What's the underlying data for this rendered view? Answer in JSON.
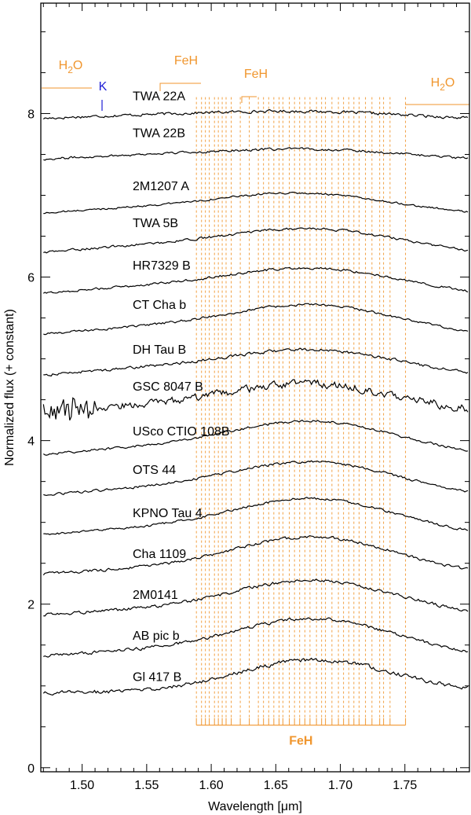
{
  "chart_data": {
    "type": "line",
    "xlabel": "Wavelength [μm]",
    "ylabel": "Normalized flux (+ constant)",
    "xlim": [
      1.468,
      1.8
    ],
    "ylim": [
      -0.05,
      9.35
    ],
    "x_ticks": [
      1.5,
      1.55,
      1.6,
      1.65,
      1.7,
      1.75
    ],
    "x_tick_labels": [
      "1.50",
      "1.55",
      "1.60",
      "1.65",
      "1.70",
      "1.75"
    ],
    "y_ticks": [
      0,
      2,
      4,
      6,
      8
    ],
    "y_tick_labels": [
      "0",
      "2",
      "4",
      "6",
      "8"
    ],
    "grid": false,
    "colors": {
      "spectrum": "#000000",
      "feh": "#f0962e",
      "potassium": "#1f1fd6",
      "axis": "#000000"
    },
    "series": [
      {
        "name": "TWA 22A",
        "offset": 8.0,
        "peak": 1.67,
        "amp": 0.03,
        "noise": 0.018,
        "slope": 0.06,
        "label_y": 8.22
      },
      {
        "name": "TWA 22B",
        "offset": 7.52,
        "peak": 1.68,
        "amp": 0.05,
        "noise": 0.015,
        "slope": 0.08,
        "label_y": 7.77
      },
      {
        "name": "2M1207 A",
        "offset": 6.88,
        "peak": 1.67,
        "amp": 0.15,
        "noise": 0.012,
        "slope": 0.1,
        "label_y": 7.12
      },
      {
        "name": "TWA 5B",
        "offset": 6.42,
        "peak": 1.68,
        "amp": 0.18,
        "noise": 0.015,
        "slope": 0.12,
        "label_y": 6.67
      },
      {
        "name": "HR7329 B",
        "offset": 5.92,
        "peak": 1.68,
        "amp": 0.2,
        "noise": 0.015,
        "slope": 0.12,
        "label_y": 6.15
      },
      {
        "name": "CT Cha b",
        "offset": 5.42,
        "peak": 1.68,
        "amp": 0.25,
        "noise": 0.015,
        "slope": 0.12,
        "label_y": 5.67
      },
      {
        "name": "DH Tau B",
        "offset": 4.92,
        "peak": 1.68,
        "amp": 0.2,
        "noise": 0.018,
        "slope": 0.12,
        "label_y": 5.12
      },
      {
        "name": "GSC 8047 B",
        "offset": 4.45,
        "peak": 1.68,
        "amp": 0.25,
        "noise": 0.05,
        "slope": 0.1,
        "label_y": 4.67
      },
      {
        "name": "USco CTIO 108B",
        "offset": 3.95,
        "peak": 1.68,
        "amp": 0.3,
        "noise": 0.015,
        "slope": 0.12,
        "label_y": 4.12
      },
      {
        "name": "OTS 44",
        "offset": 3.45,
        "peak": 1.68,
        "amp": 0.3,
        "noise": 0.015,
        "slope": 0.12,
        "label_y": 3.65
      },
      {
        "name": "KPNO Tau 4",
        "offset": 2.95,
        "peak": 1.68,
        "amp": 0.35,
        "noise": 0.015,
        "slope": 0.1,
        "label_y": 3.12
      },
      {
        "name": "Cha 1109",
        "offset": 2.45,
        "peak": 1.68,
        "amp": 0.38,
        "noise": 0.018,
        "slope": 0.08,
        "label_y": 2.62
      },
      {
        "name": "2M0141",
        "offset": 1.95,
        "peak": 1.68,
        "amp": 0.35,
        "noise": 0.02,
        "slope": 0.08,
        "label_y": 2.12
      },
      {
        "name": "AB pic b",
        "offset": 1.45,
        "peak": 1.68,
        "amp": 0.38,
        "noise": 0.02,
        "slope": 0.08,
        "label_y": 1.62
      },
      {
        "name": "Gl 417 B",
        "offset": 0.92,
        "peak": 1.68,
        "amp": 0.4,
        "noise": 0.025,
        "slope": 0.0,
        "label_y": 1.12
      }
    ],
    "feh_lines": [
      1.5885,
      1.5925,
      1.5955,
      1.5985,
      1.6025,
      1.6055,
      1.6085,
      1.6115,
      1.6155,
      1.6225,
      1.6295,
      1.6365,
      1.6405,
      1.6445,
      1.6485,
      1.6525,
      1.6555,
      1.6605,
      1.6645,
      1.6685,
      1.6725,
      1.6765,
      1.6815,
      1.6855,
      1.6885,
      1.6935,
      1.6985,
      1.7025,
      1.7065,
      1.7105,
      1.7145,
      1.7195,
      1.7245,
      1.7305,
      1.7335,
      1.7385,
      1.7505
    ],
    "feh_bar": {
      "x_start": 1.5885,
      "x_end": 1.7505,
      "y": 0.52,
      "label": "FeH"
    },
    "top_features": [
      {
        "label_main": "H",
        "label_sub": "2",
        "label_tail": "O",
        "type": "h2o_left",
        "color": "#f0962e"
      },
      {
        "label_main": "K",
        "label_sub": "",
        "label_tail": "",
        "type": "k_line",
        "color": "#1f1fd6"
      },
      {
        "label_main": "FeH",
        "label_sub": "",
        "label_tail": "",
        "type": "feh_1",
        "color": "#f0962e"
      },
      {
        "label_main": "FeH",
        "label_sub": "",
        "label_tail": "",
        "type": "feh_2",
        "color": "#f0962e"
      },
      {
        "label_main": "H",
        "label_sub": "2",
        "label_tail": "O",
        "type": "h2o_right",
        "color": "#f0962e"
      }
    ]
  }
}
